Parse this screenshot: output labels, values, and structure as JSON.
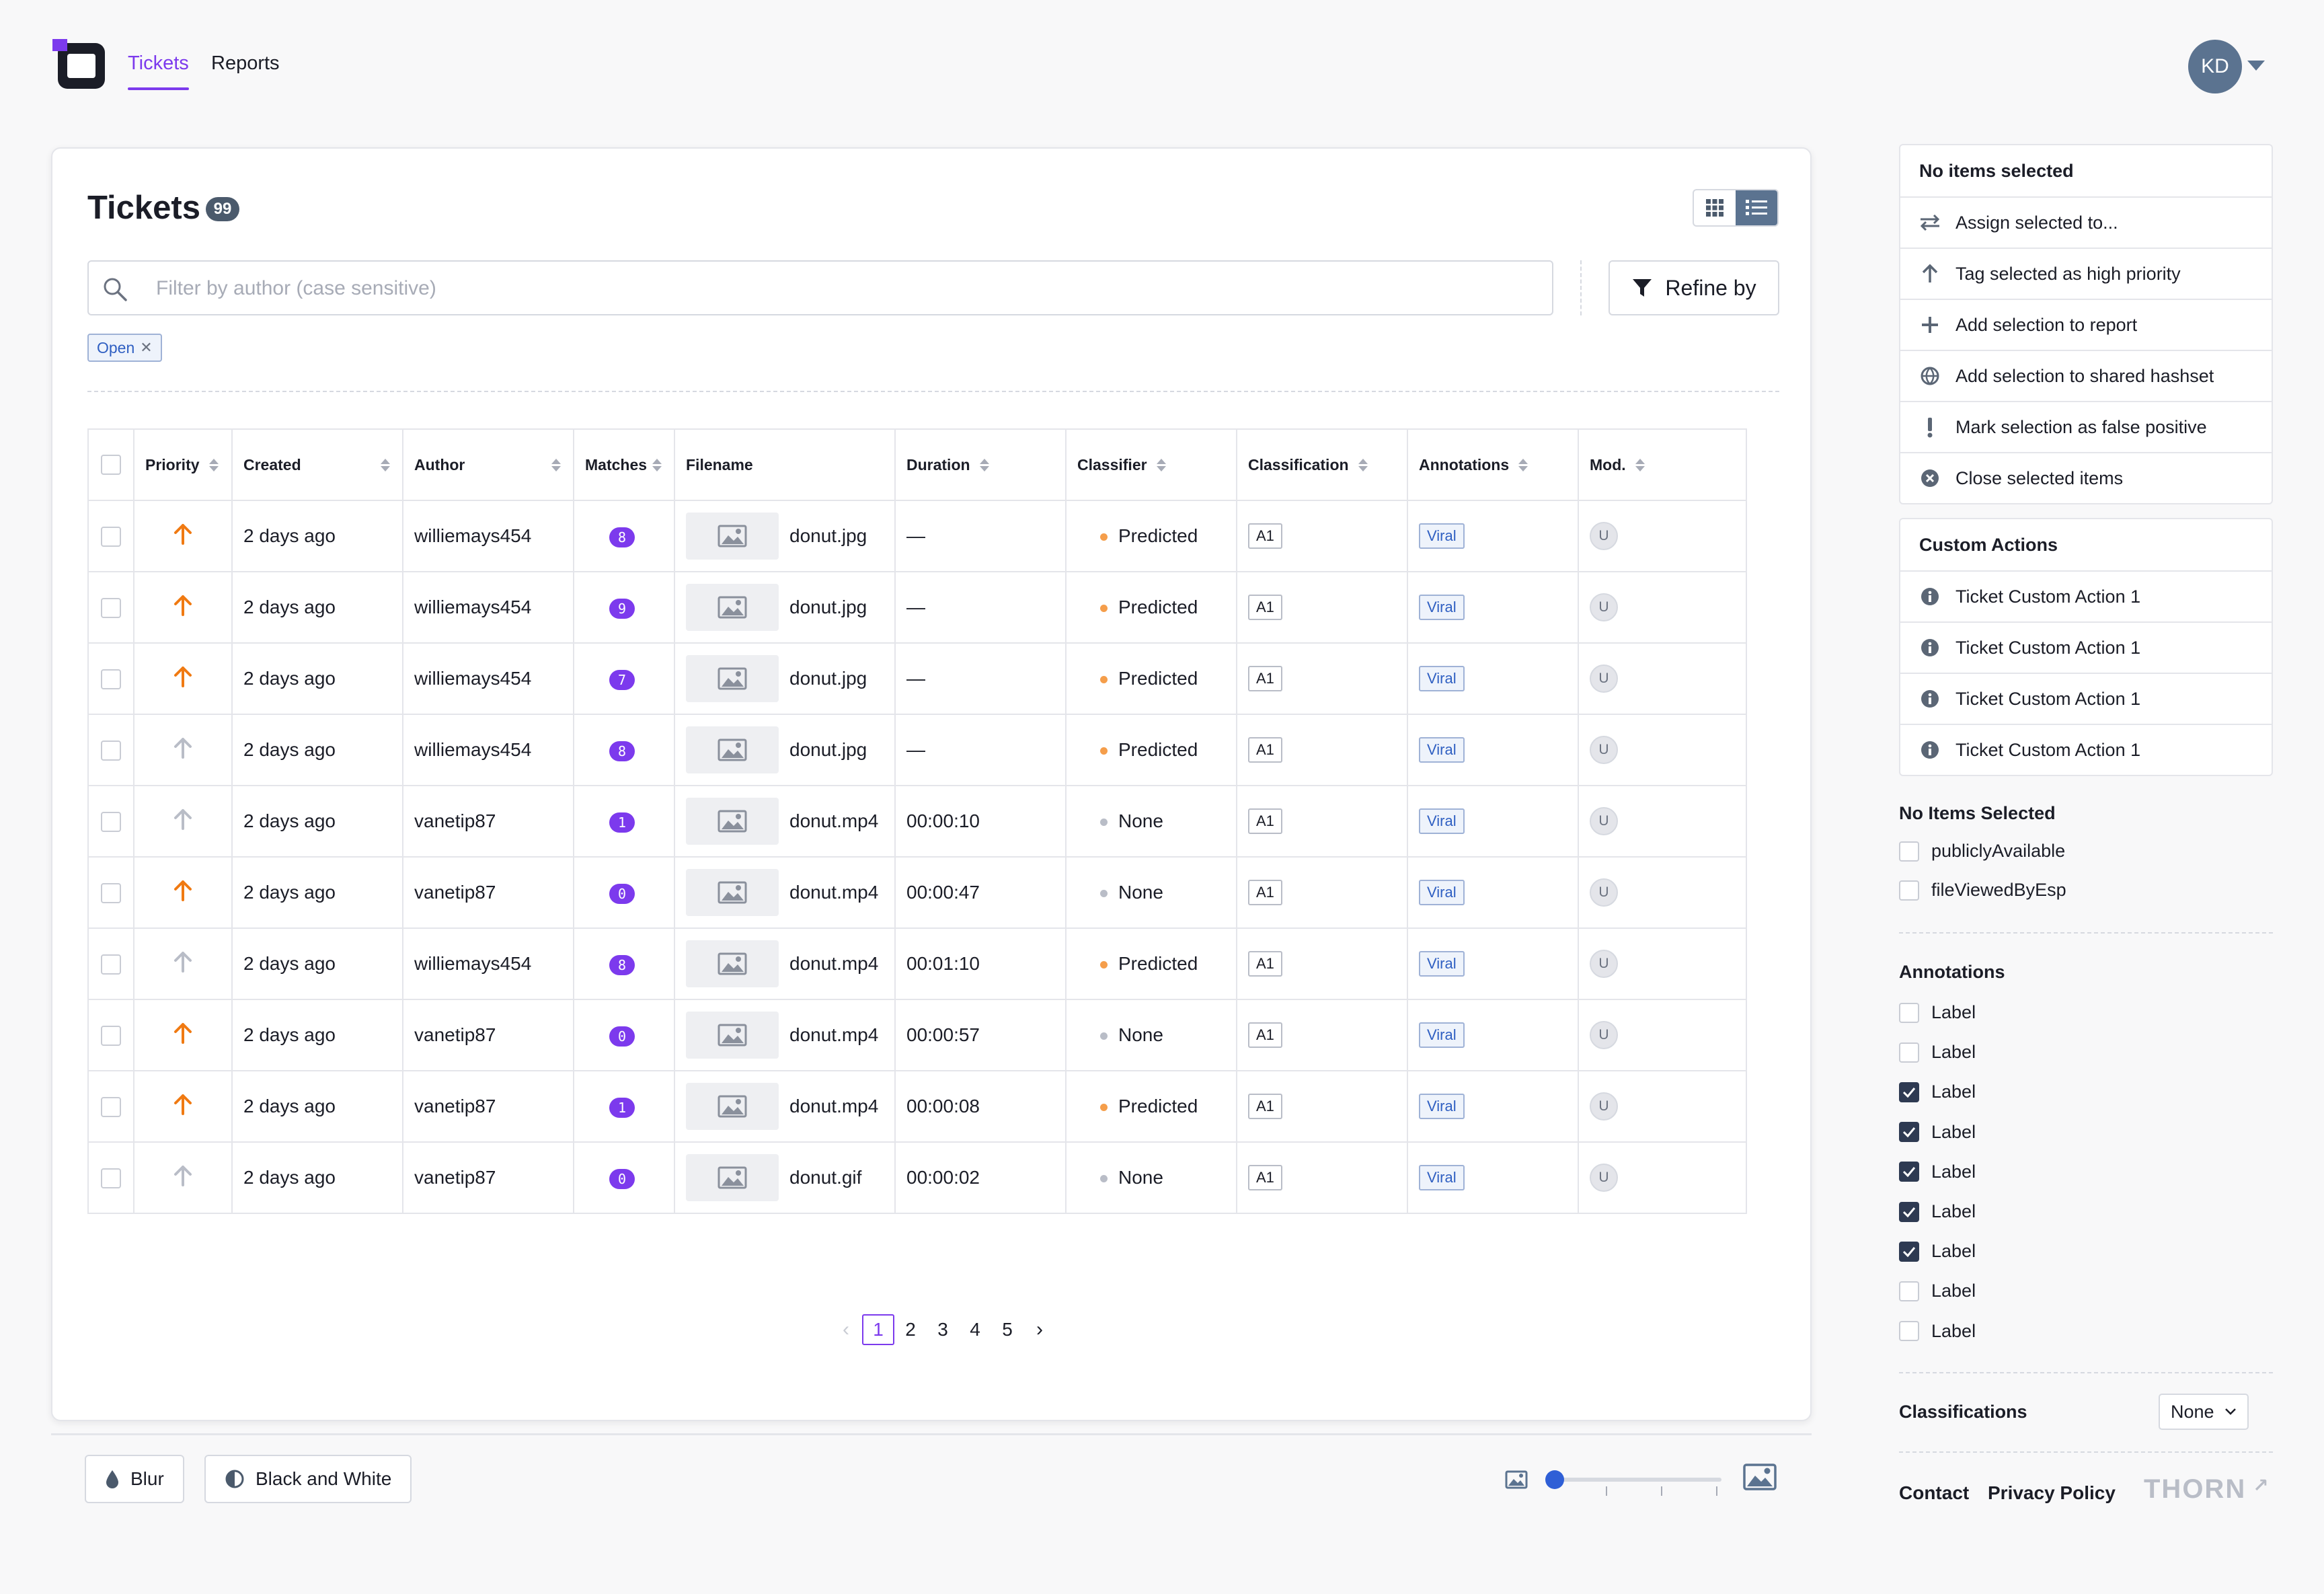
{
  "nav": {
    "tabs": [
      "Tickets",
      "Reports"
    ],
    "active_tab": "Tickets",
    "avatar_initials": "KD"
  },
  "page": {
    "title": "Tickets",
    "count": "99",
    "search_placeholder": "Filter by author (case sensitive)",
    "search_value": "",
    "refine_label": "Refine by",
    "filter_chip": "Open"
  },
  "table": {
    "columns": [
      "Priority",
      "Created",
      "Author",
      "Matches",
      "Filename",
      "Duration",
      "Classifier",
      "Classification",
      "Annotations",
      "Mod."
    ],
    "rows": [
      {
        "priority": "high",
        "created": "2 days ago",
        "author": "williemays454",
        "matches": "8",
        "filename": "donut.jpg",
        "duration": "—",
        "classifier": "Predicted",
        "classification": "A1",
        "annotation": "Viral",
        "mod": "U"
      },
      {
        "priority": "high",
        "created": "2 days ago",
        "author": "williemays454",
        "matches": "9",
        "filename": "donut.jpg",
        "duration": "—",
        "classifier": "Predicted",
        "classification": "A1",
        "annotation": "Viral",
        "mod": "U"
      },
      {
        "priority": "high",
        "created": "2 days ago",
        "author": "williemays454",
        "matches": "7",
        "filename": "donut.jpg",
        "duration": "—",
        "classifier": "Predicted",
        "classification": "A1",
        "annotation": "Viral",
        "mod": "U"
      },
      {
        "priority": "low",
        "created": "2 days ago",
        "author": "williemays454",
        "matches": "8",
        "filename": "donut.jpg",
        "duration": "—",
        "classifier": "Predicted",
        "classification": "A1",
        "annotation": "Viral",
        "mod": "U"
      },
      {
        "priority": "low",
        "created": "2 days ago",
        "author": "vanetip87",
        "matches": "1",
        "filename": "donut.mp4",
        "duration": "00:00:10",
        "classifier": "None",
        "classification": "A1",
        "annotation": "Viral",
        "mod": "U"
      },
      {
        "priority": "high",
        "created": "2 days ago",
        "author": "vanetip87",
        "matches": "0",
        "filename": "donut.mp4",
        "duration": "00:00:47",
        "classifier": "None",
        "classification": "A1",
        "annotation": "Viral",
        "mod": "U"
      },
      {
        "priority": "low",
        "created": "2 days ago",
        "author": "williemays454",
        "matches": "8",
        "filename": "donut.mp4",
        "duration": "00:01:10",
        "classifier": "Predicted",
        "classification": "A1",
        "annotation": "Viral",
        "mod": "U"
      },
      {
        "priority": "high",
        "created": "2 days ago",
        "author": "vanetip87",
        "matches": "0",
        "filename": "donut.mp4",
        "duration": "00:00:57",
        "classifier": "None",
        "classification": "A1",
        "annotation": "Viral",
        "mod": "U"
      },
      {
        "priority": "high",
        "created": "2 days ago",
        "author": "vanetip87",
        "matches": "1",
        "filename": "donut.mp4",
        "duration": "00:00:08",
        "classifier": "Predicted",
        "classification": "A1",
        "annotation": "Viral",
        "mod": "U"
      },
      {
        "priority": "low",
        "created": "2 days ago",
        "author": "vanetip87",
        "matches": "0",
        "filename": "donut.gif",
        "duration": "00:00:02",
        "classifier": "None",
        "classification": "A1",
        "annotation": "Viral",
        "mod": "U"
      }
    ]
  },
  "pagination": {
    "pages": [
      "1",
      "2",
      "3",
      "4",
      "5"
    ],
    "current": "1"
  },
  "toolbar": {
    "blur_label": "Blur",
    "bw_label": "Black and White",
    "thumb_size_level": 0
  },
  "bulk_actions": {
    "header": "No items selected",
    "items": [
      {
        "icon": "swap-icon",
        "label": "Assign selected to..."
      },
      {
        "icon": "arrow-up-icon",
        "label": "Tag selected as high priority"
      },
      {
        "icon": "plus-icon",
        "label": "Add selection to report"
      },
      {
        "icon": "globe-icon",
        "label": "Add selection to shared hashset"
      },
      {
        "icon": "exclamation-icon",
        "label": "Mark selection as false positive"
      },
      {
        "icon": "close-circle-icon",
        "label": "Close selected items"
      }
    ]
  },
  "custom_actions": {
    "header": "Custom Actions",
    "items": [
      "Ticket Custom Action 1",
      "Ticket Custom Action 1",
      "Ticket Custom Action 1",
      "Ticket Custom Action 1"
    ]
  },
  "flags": {
    "title": "No Items Selected",
    "items": [
      {
        "label": "publiclyAvailable",
        "checked": false
      },
      {
        "label": "fileViewedByEsp",
        "checked": false
      }
    ]
  },
  "annotations": {
    "title": "Annotations",
    "items": [
      {
        "label": "Label",
        "checked": false
      },
      {
        "label": "Label",
        "checked": false
      },
      {
        "label": "Label",
        "checked": true
      },
      {
        "label": "Label",
        "checked": true
      },
      {
        "label": "Label",
        "checked": true
      },
      {
        "label": "Label",
        "checked": true
      },
      {
        "label": "Label",
        "checked": true
      },
      {
        "label": "Label",
        "checked": false
      },
      {
        "label": "Label",
        "checked": false
      }
    ]
  },
  "classifications": {
    "title": "Classifications",
    "selected": "None"
  },
  "footer": {
    "contact": "Contact",
    "privacy": "Privacy Policy",
    "brand": "THORN"
  },
  "colors": {
    "accent": "#7c3aed",
    "priority_high": "#f07a12",
    "priority_low": "#b9bdc7",
    "predicted_dot": "#f59e4b",
    "none_dot": "#b9bdc7"
  }
}
